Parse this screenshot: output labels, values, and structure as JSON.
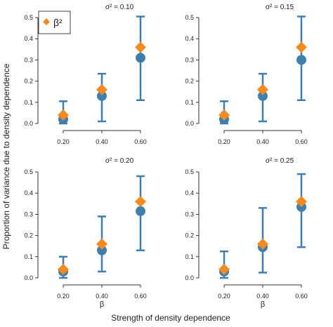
{
  "chart_data": {
    "type": "scatter",
    "ylabel": "Proportion of variance due to density dependence",
    "xlabel": "Strength of density dependence",
    "x_tick_labels": [
      "0.20",
      "0.40",
      "0.60"
    ],
    "y_tick_labels": [
      "0.0",
      "0.1",
      "0.2",
      "0.3",
      "0.4",
      "0.5"
    ],
    "ylim": [
      0,
      0.52
    ],
    "legend": {
      "symbol": "β²",
      "position": "top-left",
      "marker": "diamond"
    },
    "colors": {
      "estimate": "#3F7FB0",
      "beta_squared": "#F58A1F",
      "axis": "#333333"
    },
    "panels": [
      {
        "title": "σ² = 0.10",
        "x_label": "",
        "beta": [
          0.2,
          0.4,
          0.6
        ],
        "estimate": [
          0.02,
          0.13,
          0.31
        ],
        "lower": [
          0.0,
          0.01,
          0.11
        ],
        "upper": [
          0.105,
          0.235,
          0.505
        ],
        "beta_squared": [
          0.04,
          0.16,
          0.36
        ]
      },
      {
        "title": "σ² = 0.15",
        "x_label": "",
        "beta": [
          0.2,
          0.4,
          0.6
        ],
        "estimate": [
          0.02,
          0.13,
          0.3
        ],
        "lower": [
          0.0,
          0.01,
          0.11
        ],
        "upper": [
          0.105,
          0.235,
          0.505
        ],
        "beta_squared": [
          0.04,
          0.16,
          0.36
        ]
      },
      {
        "title": "σ² = 0.20",
        "x_label": "β",
        "beta": [
          0.2,
          0.4,
          0.6
        ],
        "estimate": [
          0.03,
          0.13,
          0.315
        ],
        "lower": [
          0.0,
          0.03,
          0.13
        ],
        "upper": [
          0.1,
          0.29,
          0.48
        ],
        "beta_squared": [
          0.04,
          0.16,
          0.36
        ]
      },
      {
        "title": "σ² = 0.25",
        "x_label": "β",
        "beta": [
          0.2,
          0.4,
          0.6
        ],
        "estimate": [
          0.03,
          0.145,
          0.335
        ],
        "lower": [
          0.0,
          0.025,
          0.145
        ],
        "upper": [
          0.125,
          0.33,
          0.49
        ],
        "beta_squared": [
          0.04,
          0.16,
          0.36
        ]
      }
    ]
  }
}
